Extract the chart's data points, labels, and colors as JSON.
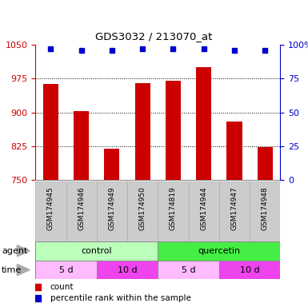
{
  "title": "GDS3032 / 213070_at",
  "samples": [
    "GSM174945",
    "GSM174946",
    "GSM174949",
    "GSM174950",
    "GSM174819",
    "GSM174944",
    "GSM174947",
    "GSM174948"
  ],
  "counts": [
    963,
    903,
    820,
    965,
    970,
    1000,
    880,
    822
  ],
  "percentile_ranks": [
    97,
    96,
    96,
    97,
    97,
    97,
    96,
    96
  ],
  "ylim_left": [
    750,
    1050
  ],
  "ylim_right": [
    0,
    100
  ],
  "yticks_left": [
    750,
    825,
    900,
    975,
    1050
  ],
  "yticks_right": [
    0,
    25,
    50,
    75,
    100
  ],
  "bar_color": "#cc0000",
  "dot_color": "#0000cc",
  "agent_groups": [
    {
      "label": "control",
      "start": 0,
      "end": 4,
      "color": "#bbffbb"
    },
    {
      "label": "quercetin",
      "start": 4,
      "end": 8,
      "color": "#44ee44"
    }
  ],
  "time_groups": [
    {
      "label": "5 d",
      "start": 0,
      "end": 2,
      "color": "#ffbbff"
    },
    {
      "label": "10 d",
      "start": 2,
      "end": 4,
      "color": "#ee44ee"
    },
    {
      "label": "5 d",
      "start": 4,
      "end": 6,
      "color": "#ffbbff"
    },
    {
      "label": "10 d",
      "start": 6,
      "end": 8,
      "color": "#ee44ee"
    }
  ],
  "left_axis_color": "#cc0000",
  "right_axis_color": "#0000cc",
  "grid_color": "#000000",
  "sample_box_color": "#cccccc",
  "legend_count_color": "#cc0000",
  "legend_pct_color": "#0000cc"
}
